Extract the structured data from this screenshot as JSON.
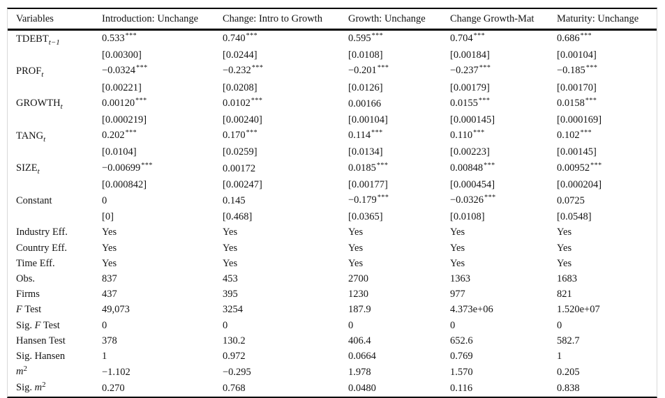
{
  "colors": {
    "rule": "#000000",
    "edge": "#d8d8d8",
    "text": "#141414",
    "background": "#ffffff"
  },
  "table": {
    "columns": [
      "Variables",
      "Introduction: Unchange",
      "Change: Intro to Growth",
      "Growth: Unchange",
      "Change Growth-Mat",
      "Maturity: Unchange"
    ],
    "rows": [
      {
        "label": [
          {
            "t": "TDEBT"
          },
          {
            "t": "t−1",
            "style": "sub"
          }
        ],
        "cells": [
          {
            "v": "0.533",
            "s": "***"
          },
          {
            "v": "0.740",
            "s": "***"
          },
          {
            "v": "0.595",
            "s": "***"
          },
          {
            "v": "0.704",
            "s": "***"
          },
          {
            "v": "0.686",
            "s": "***"
          }
        ]
      },
      {
        "label": [],
        "cells": [
          {
            "v": "[0.00300]"
          },
          {
            "v": "[0.0244]"
          },
          {
            "v": "[0.0108]"
          },
          {
            "v": "[0.00184]"
          },
          {
            "v": "[0.00104]"
          }
        ]
      },
      {
        "label": [
          {
            "t": "PROF"
          },
          {
            "t": "t",
            "style": "sub"
          }
        ],
        "cells": [
          {
            "v": "−0.0324",
            "s": "***"
          },
          {
            "v": "−0.232",
            "s": "***"
          },
          {
            "v": "−0.201",
            "s": "***"
          },
          {
            "v": "−0.237",
            "s": "***"
          },
          {
            "v": "−0.185",
            "s": "***"
          }
        ]
      },
      {
        "label": [],
        "cells": [
          {
            "v": "[0.00221]"
          },
          {
            "v": "[0.0208]"
          },
          {
            "v": "[0.0126]"
          },
          {
            "v": "[0.00179]"
          },
          {
            "v": "[0.00170]"
          }
        ]
      },
      {
        "label": [
          {
            "t": "GROWTH"
          },
          {
            "t": "t",
            "style": "sub"
          }
        ],
        "cells": [
          {
            "v": "0.00120",
            "s": "***"
          },
          {
            "v": "0.0102",
            "s": "***"
          },
          {
            "v": "0.00166"
          },
          {
            "v": "0.0155",
            "s": "***"
          },
          {
            "v": "0.0158",
            "s": "***"
          }
        ]
      },
      {
        "label": [],
        "cells": [
          {
            "v": "[0.000219]"
          },
          {
            "v": "[0.00240]"
          },
          {
            "v": "[0.00104]"
          },
          {
            "v": "[0.000145]"
          },
          {
            "v": "[0.000169]"
          }
        ]
      },
      {
        "label": [
          {
            "t": "TANG"
          },
          {
            "t": "t",
            "style": "sub"
          }
        ],
        "cells": [
          {
            "v": "0.202",
            "s": "***"
          },
          {
            "v": "0.170",
            "s": "***"
          },
          {
            "v": "0.114",
            "s": "***"
          },
          {
            "v": "0.110",
            "s": "***"
          },
          {
            "v": "0.102",
            "s": "***"
          }
        ]
      },
      {
        "label": [],
        "cells": [
          {
            "v": "[0.0104]"
          },
          {
            "v": "[0.0259]"
          },
          {
            "v": "[0.0134]"
          },
          {
            "v": "[0.00223]"
          },
          {
            "v": "[0.00145]"
          }
        ]
      },
      {
        "label": [
          {
            "t": "SIZE"
          },
          {
            "t": "t",
            "style": "sub"
          }
        ],
        "cells": [
          {
            "v": "−0.00699",
            "s": "***"
          },
          {
            "v": "0.00172"
          },
          {
            "v": "0.0185",
            "s": "***"
          },
          {
            "v": "0.00848",
            "s": "***"
          },
          {
            "v": "0.00952",
            "s": "***"
          }
        ]
      },
      {
        "label": [],
        "cells": [
          {
            "v": "[0.000842]"
          },
          {
            "v": "[0.00247]"
          },
          {
            "v": "[0.00177]"
          },
          {
            "v": "[0.000454]"
          },
          {
            "v": "[0.000204]"
          }
        ]
      },
      {
        "label": [
          {
            "t": "Constant"
          }
        ],
        "cells": [
          {
            "v": "0"
          },
          {
            "v": "0.145"
          },
          {
            "v": "−0.179",
            "s": "***"
          },
          {
            "v": "−0.0326",
            "s": "***"
          },
          {
            "v": "0.0725"
          }
        ]
      },
      {
        "label": [],
        "cells": [
          {
            "v": "[0]"
          },
          {
            "v": "[0.468]"
          },
          {
            "v": "[0.0365]"
          },
          {
            "v": "[0.0108]"
          },
          {
            "v": "[0.0548]"
          }
        ]
      },
      {
        "label": [
          {
            "t": "Industry Eff."
          }
        ],
        "cells": [
          {
            "v": "Yes"
          },
          {
            "v": "Yes"
          },
          {
            "v": "Yes"
          },
          {
            "v": "Yes"
          },
          {
            "v": "Yes"
          }
        ]
      },
      {
        "label": [
          {
            "t": "Country Eff."
          }
        ],
        "cells": [
          {
            "v": "Yes"
          },
          {
            "v": "Yes"
          },
          {
            "v": "Yes"
          },
          {
            "v": "Yes"
          },
          {
            "v": "Yes"
          }
        ]
      },
      {
        "label": [
          {
            "t": "Time Eff."
          }
        ],
        "cells": [
          {
            "v": "Yes"
          },
          {
            "v": "Yes"
          },
          {
            "v": "Yes"
          },
          {
            "v": "Yes"
          },
          {
            "v": "Yes"
          }
        ]
      },
      {
        "label": [
          {
            "t": "Obs."
          }
        ],
        "cells": [
          {
            "v": "837"
          },
          {
            "v": "453"
          },
          {
            "v": "2700"
          },
          {
            "v": "1363"
          },
          {
            "v": "1683"
          }
        ]
      },
      {
        "label": [
          {
            "t": "Firms"
          }
        ],
        "cells": [
          {
            "v": "437"
          },
          {
            "v": "395"
          },
          {
            "v": "1230"
          },
          {
            "v": "977"
          },
          {
            "v": "821"
          }
        ]
      },
      {
        "label": [
          {
            "t": "F",
            "style": "italic"
          },
          {
            "t": " Test"
          }
        ],
        "cells": [
          {
            "v": "49,073"
          },
          {
            "v": "3254"
          },
          {
            "v": "187.9"
          },
          {
            "v": "4.373e+06"
          },
          {
            "v": "1.520e+07"
          }
        ]
      },
      {
        "label": [
          {
            "t": "Sig. "
          },
          {
            "t": "F",
            "style": "italic"
          },
          {
            "t": " Test"
          }
        ],
        "cells": [
          {
            "v": "0"
          },
          {
            "v": "0"
          },
          {
            "v": "0"
          },
          {
            "v": "0"
          },
          {
            "v": "0"
          }
        ]
      },
      {
        "label": [
          {
            "t": "Hansen Test"
          }
        ],
        "cells": [
          {
            "v": "378"
          },
          {
            "v": "130.2"
          },
          {
            "v": "406.4"
          },
          {
            "v": "652.6"
          },
          {
            "v": "582.7"
          }
        ]
      },
      {
        "label": [
          {
            "t": "Sig. Hansen"
          }
        ],
        "cells": [
          {
            "v": "1"
          },
          {
            "v": "0.972"
          },
          {
            "v": "0.0664"
          },
          {
            "v": "0.769"
          },
          {
            "v": "1"
          }
        ]
      },
      {
        "label": [
          {
            "t": "m",
            "style": "italic"
          },
          {
            "t": "2",
            "style": "sup"
          }
        ],
        "cells": [
          {
            "v": "−1.102"
          },
          {
            "v": "−0.295"
          },
          {
            "v": "1.978"
          },
          {
            "v": "1.570"
          },
          {
            "v": "0.205"
          }
        ]
      },
      {
        "label": [
          {
            "t": "Sig. "
          },
          {
            "t": "m",
            "style": "italic"
          },
          {
            "t": "2",
            "style": "sup"
          }
        ],
        "cells": [
          {
            "v": "0.270"
          },
          {
            "v": "0.768"
          },
          {
            "v": "0.0480"
          },
          {
            "v": "0.116"
          },
          {
            "v": "0.838"
          }
        ]
      }
    ]
  }
}
